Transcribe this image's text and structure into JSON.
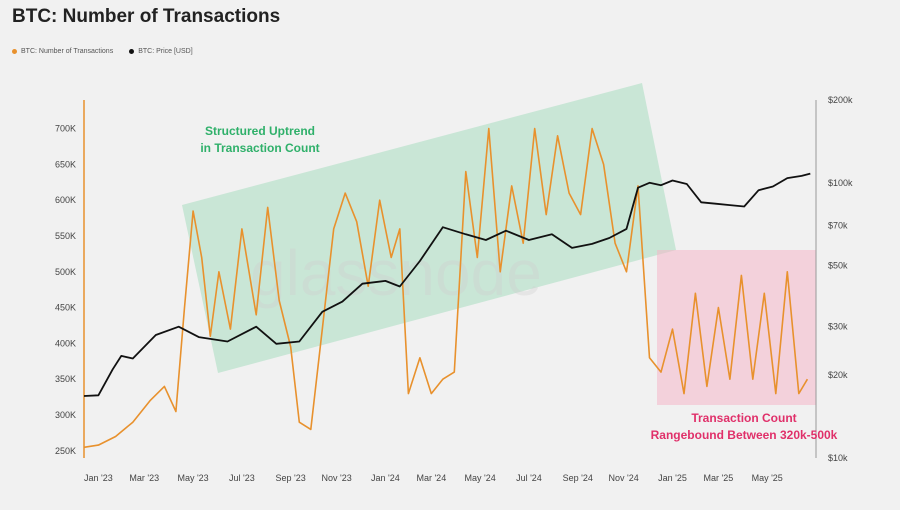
{
  "title": "BTC: Number of Transactions",
  "legend": [
    {
      "label": "BTC: Number of Transactions",
      "color": "#e8912d"
    },
    {
      "label": "BTC: Price [USD]",
      "color": "#111111"
    }
  ],
  "watermark": "glassnode",
  "annotations": {
    "uptrend_line1": "Structured Uptrend",
    "uptrend_line2": "in Transaction Count",
    "range_line1": "Transaction Count",
    "range_line2": "Rangebound Between 320k-500k"
  },
  "colors": {
    "tx": "#e8912d",
    "price": "#111111",
    "green_box": "#a8dcbf",
    "green_text": "#2fb06a",
    "pink_box": "#f4b6c8",
    "pink_text": "#e0306a"
  },
  "chart_data": {
    "type": "line",
    "x_ticks": [
      "Jan '23",
      "Mar '23",
      "May '23",
      "Jul '23",
      "Sep '23",
      "Nov '23",
      "Jan '24",
      "Mar '24",
      "May '24",
      "Jul '24",
      "Sep '24",
      "Nov '24",
      "Jan '25",
      "Mar '25",
      "May '25"
    ],
    "y_left_ticks": [
      "250K",
      "300K",
      "350K",
      "400K",
      "450K",
      "500K",
      "550K",
      "600K",
      "650K",
      "700K"
    ],
    "y_left_values": [
      250000,
      300000,
      350000,
      400000,
      450000,
      500000,
      550000,
      600000,
      650000,
      700000
    ],
    "y_right_ticks": [
      "$10k",
      "$20k",
      "$30k",
      "$50k",
      "$70k",
      "$100k",
      "$200k"
    ],
    "y_right_values": [
      10000,
      20000,
      30000,
      50000,
      70000,
      100000,
      200000
    ],
    "y_right_scale": "log",
    "series": [
      {
        "name": "BTC: Number of Transactions",
        "axis": "left",
        "x": [
          2022.95,
          2023.0,
          2023.06,
          2023.12,
          2023.18,
          2023.23,
          2023.27,
          2023.3,
          2023.33,
          2023.36,
          2023.39,
          2023.42,
          2023.46,
          2023.5,
          2023.55,
          2023.59,
          2023.63,
          2023.67,
          2023.7,
          2023.74,
          2023.78,
          2023.82,
          2023.86,
          2023.9,
          2023.94,
          2023.98,
          2024.02,
          2024.05,
          2024.08,
          2024.12,
          2024.16,
          2024.2,
          2024.24,
          2024.28,
          2024.32,
          2024.36,
          2024.4,
          2024.44,
          2024.48,
          2024.52,
          2024.56,
          2024.6,
          2024.64,
          2024.68,
          2024.72,
          2024.76,
          2024.8,
          2024.84,
          2024.88,
          2024.92,
          2024.96,
          2025.0,
          2025.04,
          2025.08,
          2025.12,
          2025.16,
          2025.2,
          2025.24,
          2025.28,
          2025.32,
          2025.36,
          2025.4,
          2025.44,
          2025.47
        ],
        "y": [
          255000,
          258000,
          270000,
          290000,
          320000,
          340000,
          305000,
          450000,
          585000,
          520000,
          410000,
          500000,
          420000,
          560000,
          440000,
          590000,
          460000,
          395000,
          290000,
          280000,
          420000,
          560000,
          610000,
          570000,
          480000,
          600000,
          520000,
          560000,
          330000,
          380000,
          330000,
          350000,
          360000,
          640000,
          520000,
          700000,
          500000,
          620000,
          540000,
          700000,
          580000,
          690000,
          610000,
          580000,
          700000,
          650000,
          540000,
          500000,
          620000,
          380000,
          360000,
          420000,
          330000,
          470000,
          340000,
          450000,
          350000,
          495000,
          350000,
          470000,
          330000,
          500000,
          330000,
          350000
        ]
      },
      {
        "name": "BTC: Price [USD]",
        "axis": "right",
        "x": [
          2022.95,
          2023.0,
          2023.05,
          2023.08,
          2023.12,
          2023.2,
          2023.28,
          2023.35,
          2023.45,
          2023.55,
          2023.62,
          2023.7,
          2023.78,
          2023.85,
          2023.92,
          2024.0,
          2024.05,
          2024.12,
          2024.2,
          2024.28,
          2024.35,
          2024.42,
          2024.5,
          2024.58,
          2024.65,
          2024.72,
          2024.78,
          2024.84,
          2024.88,
          2024.92,
          2024.96,
          2025.0,
          2025.05,
          2025.1,
          2025.15,
          2025.2,
          2025.25,
          2025.3,
          2025.35,
          2025.4,
          2025.45,
          2025.48
        ],
        "y": [
          16800,
          16900,
          21000,
          23500,
          23000,
          28000,
          30000,
          27500,
          26500,
          30000,
          26000,
          26500,
          34000,
          37000,
          43000,
          44000,
          42000,
          52000,
          69000,
          65000,
          62000,
          67000,
          62000,
          65000,
          58000,
          60000,
          63000,
          68000,
          96000,
          100000,
          98000,
          102000,
          99000,
          85000,
          84000,
          83000,
          82000,
          94000,
          97000,
          104000,
          106000,
          108000
        ]
      }
    ]
  }
}
